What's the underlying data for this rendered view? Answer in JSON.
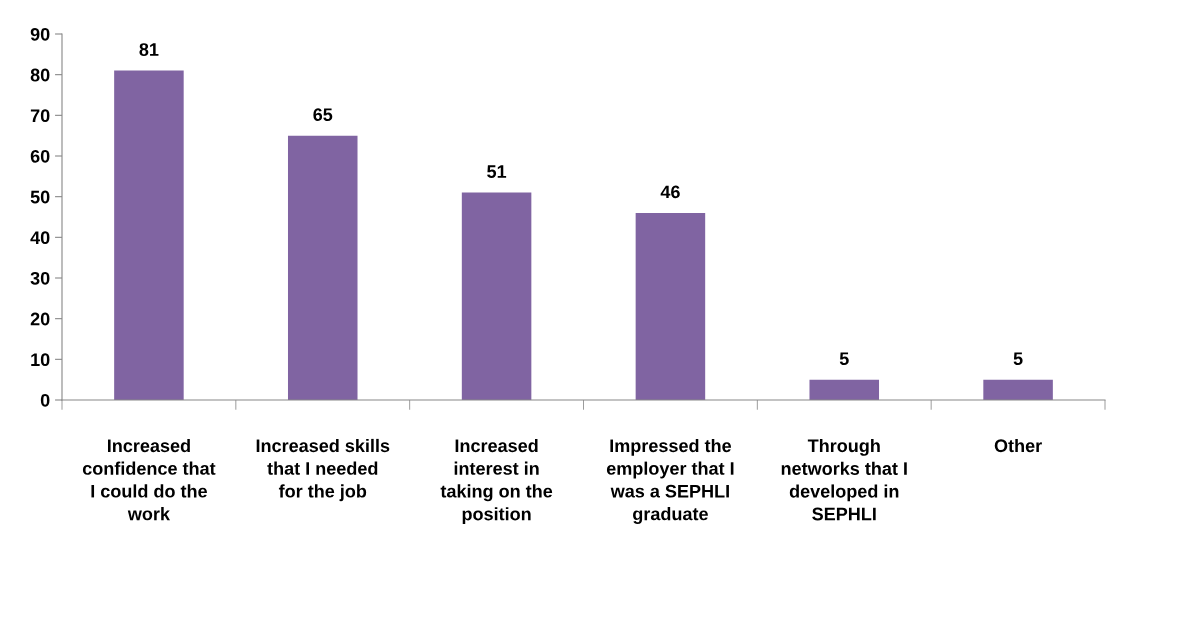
{
  "chart_data": {
    "type": "bar",
    "categories": [
      "Increased\nconfidence that\nI could do the\nwork",
      "Increased skills\nthat I needed\nfor the job",
      "Increased\ninterest in\ntaking on the\nposition",
      "Impressed the\nemployer that I\nwas a SEPHLI\ngraduate",
      "Through\nnetworks that I\ndeveloped in\nSEPHLI",
      "Other"
    ],
    "values": [
      81,
      65,
      51,
      46,
      5,
      5
    ],
    "color": "#8064a2",
    "ylim": [
      0,
      90
    ],
    "yticks": [
      0,
      10,
      20,
      30,
      40,
      50,
      60,
      70,
      80,
      90
    ],
    "grid": false,
    "legend": false,
    "data_labels": true
  }
}
